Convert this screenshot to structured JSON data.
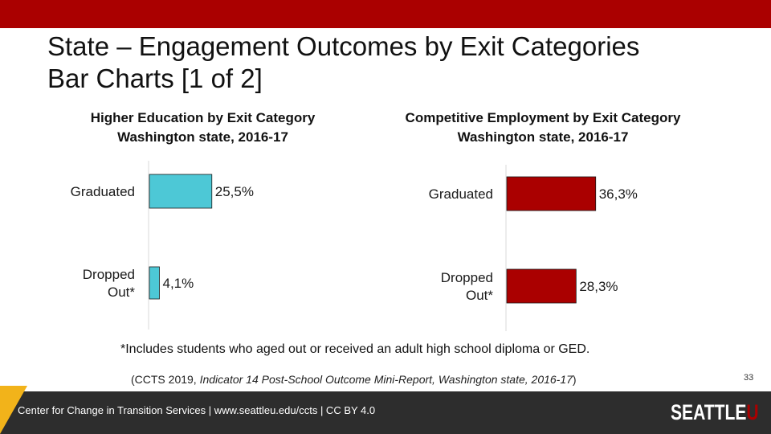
{
  "slide": {
    "title_line1": "State – Engagement Outcomes by Exit Categories",
    "title_line2": "Bar Charts [1 of 2]",
    "footnote": "*Includes students who aged out or received an adult high school diploma or GED.",
    "citation_open": "(CCTS 2019, ",
    "citation_italic": "Indicator 14 Post-School Outcome Mini-Report, Washington state, 2016-17",
    "citation_close": ")",
    "page_number": "33",
    "footer_text": "Center for Change in Transition Services | www.seattleu.edu/ccts | CC BY 4.0",
    "logo_main": "SEATTLE",
    "logo_accent": "U"
  },
  "colors": {
    "brand_red": "#aa0000",
    "footer_dark": "#2d2d2d",
    "accent_gold": "#f2b31a"
  },
  "chart_data": [
    {
      "type": "bar",
      "orientation": "horizontal",
      "title_line1": "Higher Education by Exit Category",
      "title_line2": "Washington state, 2016-17",
      "categories": [
        [
          "Graduated"
        ],
        [
          "Dropped",
          "Out*"
        ]
      ],
      "values": [
        25.5,
        4.1
      ],
      "value_labels": [
        "25,5%",
        "4,1%"
      ],
      "color": "#4dc8d6",
      "xlim": [
        0,
        40
      ],
      "grid": false,
      "legend": "none"
    },
    {
      "type": "bar",
      "orientation": "horizontal",
      "title_line1": "Competitive Employment by Exit Category",
      "title_line2": "Washington state, 2016-17",
      "categories": [
        [
          "Graduated"
        ],
        [
          "Dropped",
          "Out*"
        ]
      ],
      "values": [
        36.3,
        28.3
      ],
      "value_labels": [
        "36,3%",
        "28,3%"
      ],
      "color": "#aa0000",
      "xlim": [
        0,
        40
      ],
      "grid": false,
      "legend": "none"
    }
  ]
}
